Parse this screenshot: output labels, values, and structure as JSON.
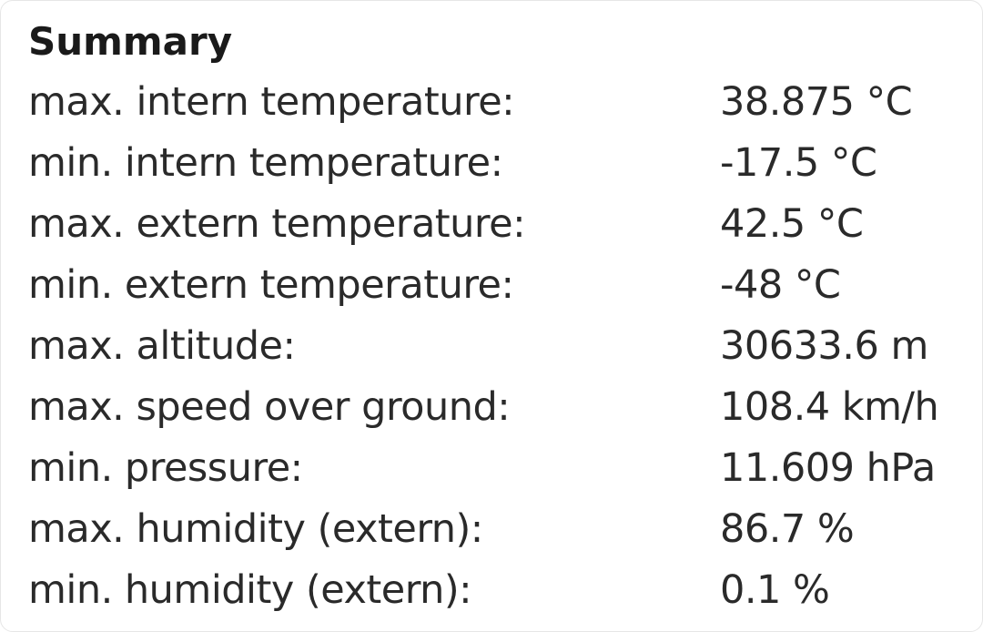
{
  "summary": {
    "title": "Summary",
    "rows": [
      {
        "label": "max. intern temperature:",
        "value": "38.875 °C"
      },
      {
        "label": "min. intern temperature:",
        "value": "-17.5 °C"
      },
      {
        "label": "max. extern temperature:",
        "value": "42.5 °C"
      },
      {
        "label": "min. extern temperature:",
        "value": "-48 °C"
      },
      {
        "label": "max. altitude:",
        "value": "30633.6 m"
      },
      {
        "label": "max. speed over ground:",
        "value": "108.4 km/h"
      },
      {
        "label": "min. pressure:",
        "value": "11.609 hPa"
      },
      {
        "label": "max. humidity (extern):",
        "value": "86.7 %"
      },
      {
        "label": "min. humidity (extern):",
        "value": "0.1 %"
      }
    ]
  }
}
